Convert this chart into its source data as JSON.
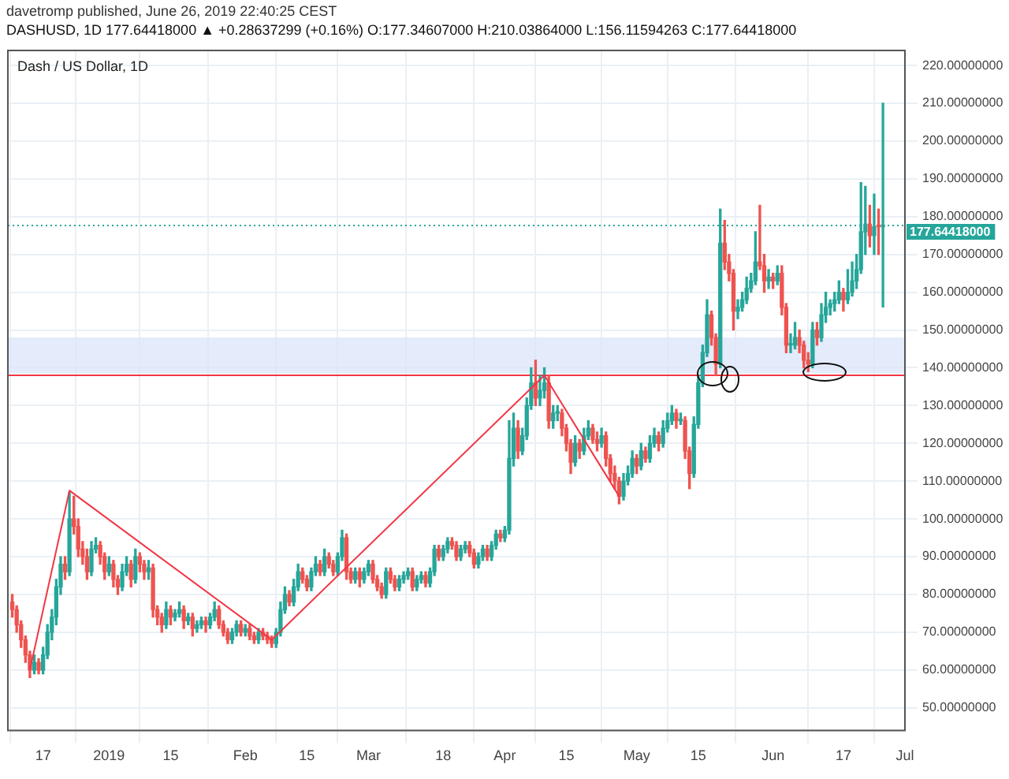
{
  "chart_data": {
    "type": "candlestick",
    "title": "Dash / US Dollar, 1D",
    "subtitle": "davetromp published, June 26, 2019 22:40:25 CEST",
    "annotations": [
      "DASHUSD, 1D 177.64418000 ▲ +0.28637299 (+0.16%) O:177.34607000 H:210.03864000 L:156.11594263 C:177.64418000"
    ],
    "colors": [
      "#ef5350",
      "#ef5350",
      "#ef5350",
      "#ef5350",
      "#ef5350",
      "#26a69a",
      "#ef5350",
      "#26a69a",
      "#26a69a",
      "#26a69a",
      "#26a69a",
      "#26a69a",
      "#ef5350",
      "#26a69a",
      "#ef5350",
      "#ef5350",
      "#ef5350",
      "#ef5350",
      "#26a69a",
      "#26a69a",
      "#ef5350",
      "#ef5350",
      "#26a69a",
      "#ef5350",
      "#ef5350",
      "#26a69a",
      "#26a69a",
      "#ef5350",
      "#26a69a",
      "#ef5350",
      "#ef5350",
      "#26a69a",
      "#ef5350",
      "#ef5350",
      "#ef5350",
      "#26a69a",
      "#ef5350",
      "#26a69a",
      "#26a69a",
      "#ef5350",
      "#26a69a",
      "#ef5350",
      "#26a69a",
      "#26a69a",
      "#ef5350",
      "#26a69a",
      "#26a69a",
      "#ef5350",
      "#ef5350",
      "#ef5350",
      "#26a69a",
      "#26a69a",
      "#ef5350",
      "#26a69a",
      "#ef5350",
      "#ef5350",
      "#26a69a",
      "#ef5350",
      "#ef5350",
      "#ef5350",
      "#26a69a",
      "#26a69a",
      "#26a69a",
      "#ef5350",
      "#26a69a",
      "#26a69a",
      "#ef5350",
      "#ef5350",
      "#26a69a",
      "#26a69a",
      "#ef5350",
      "#26a69a",
      "#ef5350",
      "#ef5350",
      "#26a69a",
      "#26a69a",
      "#ef5350",
      "#ef5350",
      "#26a69a",
      "#ef5350",
      "#26a69a",
      "#26a69a",
      "#ef5350",
      "#ef5350",
      "#ef5350",
      "#26a69a",
      "#ef5350",
      "#ef5350",
      "#26a69a",
      "#26a69a",
      "#26a69a",
      "#ef5350",
      "#26a69a",
      "#26a69a",
      "#ef5350",
      "#26a69a",
      "#26a69a",
      "#ef5350",
      "#26a69a",
      "#26a69a",
      "#ef5350",
      "#ef5350",
      "#26a69a",
      "#26a69a",
      "#ef5350",
      "#ef5350",
      "#26a69a",
      "#26a69a",
      "#ef5350",
      "#26a69a",
      "#26a69a",
      "#ef5350",
      "#26a69a",
      "#26a69a",
      "#26a69a",
      "#ef5350",
      "#26a69a",
      "#26a69a",
      "#26a69a",
      "#ef5350",
      "#26a69a",
      "#26a69a",
      "#ef5350",
      "#26a69a",
      "#26a69a",
      "#ef5350",
      "#ef5350",
      "#ef5350",
      "#26a69a",
      "#ef5350",
      "#26a69a",
      "#26a69a",
      "#ef5350",
      "#ef5350",
      "#26a69a",
      "#ef5350",
      "#ef5350",
      "#ef5350",
      "#ef5350",
      "#26a69a",
      "#26a69a",
      "#26a69a",
      "#ef5350",
      "#26a69a",
      "#ef5350",
      "#26a69a",
      "#26a69a",
      "#ef5350",
      "#26a69a",
      "#26a69a",
      "#26a69a",
      "#ef5350",
      "#26a69a",
      "#ef5350",
      "#ef5350",
      "#26a69a",
      "#26a69a",
      "#26a69a",
      "#26a69a",
      "#ef5350",
      "#ef5350",
      "#26a69a",
      "#ef5350",
      "#ef5350",
      "#ef5350",
      "#26a69a",
      "#26a69a",
      "#26a69a",
      "#26a69a",
      "#26a69a",
      "#ef5350",
      "#ef5350",
      "#26a69a",
      "#ef5350",
      "#26a69a",
      "#ef5350",
      "#ef5350",
      "#26a69a",
      "#26a69a",
      "#ef5350",
      "#ef5350",
      "#ef5350",
      "#26a69a",
      "#ef5350",
      "#26a69a",
      "#26a69a",
      "#26a69a",
      "#26a69a",
      "#26a69a",
      "#ef5350",
      "#26a69a",
      "#26a69a",
      "#26a69a",
      "#26a69a",
      "#26a69a",
      "#ef5350",
      "#26a69a",
      "#ef5350",
      "#26a69a"
    ],
    "x": [
      "2018-12-10",
      "2018-12-11",
      "2018-12-12",
      "2018-12-13",
      "2018-12-14",
      "2018-12-15",
      "2018-12-16",
      "2018-12-17",
      "2018-12-18",
      "2018-12-19",
      "2018-12-20",
      "2018-12-21",
      "2018-12-22",
      "2018-12-23",
      "2018-12-24",
      "2018-12-25",
      "2018-12-26",
      "2018-12-27",
      "2018-12-28",
      "2018-12-29",
      "2018-12-30",
      "2018-12-31",
      "2019-01-01",
      "2019-01-02",
      "2019-01-03",
      "2019-01-04",
      "2019-01-05",
      "2019-01-06",
      "2019-01-07",
      "2019-01-08",
      "2019-01-09",
      "2019-01-10",
      "2019-01-11",
      "2019-01-12",
      "2019-01-13",
      "2019-01-14",
      "2019-01-15",
      "2019-01-16",
      "2019-01-17",
      "2019-01-18",
      "2019-01-19",
      "2019-01-20",
      "2019-01-21",
      "2019-01-22",
      "2019-01-23",
      "2019-01-24",
      "2019-01-25",
      "2019-01-26",
      "2019-01-27",
      "2019-01-28",
      "2019-01-29",
      "2019-01-30",
      "2019-01-31",
      "2019-02-01",
      "2019-02-02",
      "2019-02-03",
      "2019-02-04",
      "2019-02-05",
      "2019-02-06",
      "2019-02-07",
      "2019-02-08",
      "2019-02-09",
      "2019-02-10",
      "2019-02-11",
      "2019-02-12",
      "2019-02-13",
      "2019-02-14",
      "2019-02-15",
      "2019-02-16",
      "2019-02-17",
      "2019-02-18",
      "2019-02-19",
      "2019-02-20",
      "2019-02-21",
      "2019-02-22",
      "2019-02-23",
      "2019-02-24",
      "2019-02-25",
      "2019-02-26",
      "2019-02-27",
      "2019-02-28",
      "2019-03-01",
      "2019-03-02",
      "2019-03-03",
      "2019-03-04",
      "2019-03-05",
      "2019-03-06",
      "2019-03-07",
      "2019-03-08",
      "2019-03-09",
      "2019-03-10",
      "2019-03-11",
      "2019-03-12",
      "2019-03-13",
      "2019-03-14",
      "2019-03-15",
      "2019-03-16",
      "2019-03-17",
      "2019-03-18",
      "2019-03-19",
      "2019-03-20",
      "2019-03-21",
      "2019-03-22",
      "2019-03-23",
      "2019-03-24",
      "2019-03-25",
      "2019-03-26",
      "2019-03-27",
      "2019-03-28",
      "2019-03-29",
      "2019-03-30",
      "2019-03-31",
      "2019-04-01",
      "2019-04-02",
      "2019-04-03",
      "2019-04-04",
      "2019-04-05",
      "2019-04-06",
      "2019-04-07",
      "2019-04-08",
      "2019-04-09",
      "2019-04-10",
      "2019-04-11",
      "2019-04-12",
      "2019-04-13",
      "2019-04-14",
      "2019-04-15",
      "2019-04-16",
      "2019-04-17",
      "2019-04-18",
      "2019-04-19",
      "2019-04-20",
      "2019-04-21",
      "2019-04-22",
      "2019-04-23",
      "2019-04-24",
      "2019-04-25",
      "2019-04-26",
      "2019-04-27",
      "2019-04-28",
      "2019-04-29",
      "2019-04-30",
      "2019-05-01",
      "2019-05-02",
      "2019-05-03",
      "2019-05-04",
      "2019-05-05",
      "2019-05-06",
      "2019-05-07",
      "2019-05-08",
      "2019-05-09",
      "2019-05-10",
      "2019-05-11",
      "2019-05-12",
      "2019-05-13",
      "2019-05-14",
      "2019-05-15",
      "2019-05-16",
      "2019-05-17",
      "2019-05-18",
      "2019-05-19",
      "2019-05-20",
      "2019-05-21",
      "2019-05-22",
      "2019-05-23",
      "2019-05-24",
      "2019-05-25",
      "2019-05-26",
      "2019-05-27",
      "2019-05-28",
      "2019-05-29",
      "2019-05-30",
      "2019-05-31",
      "2019-06-01",
      "2019-06-02",
      "2019-06-03",
      "2019-06-04",
      "2019-06-05",
      "2019-06-06",
      "2019-06-07",
      "2019-06-08",
      "2019-06-09",
      "2019-06-10",
      "2019-06-11",
      "2019-06-12",
      "2019-06-13",
      "2019-06-14",
      "2019-06-15",
      "2019-06-16",
      "2019-06-17",
      "2019-06-18",
      "2019-06-19",
      "2019-06-20",
      "2019-06-21",
      "2019-06-22",
      "2019-06-23",
      "2019-06-24",
      "2019-06-25",
      "2019-06-26"
    ],
    "ohlc": [
      [
        78,
        80,
        74,
        76
      ],
      [
        76,
        77,
        70,
        72
      ],
      [
        72,
        73,
        66,
        68
      ],
      [
        68,
        69,
        62,
        64
      ],
      [
        64,
        65,
        58,
        60
      ],
      [
        60,
        64,
        59,
        62
      ],
      [
        62,
        63,
        59,
        60
      ],
      [
        60,
        66,
        59,
        64
      ],
      [
        64,
        72,
        63,
        70
      ],
      [
        70,
        76,
        68,
        74
      ],
      [
        74,
        84,
        72,
        82
      ],
      [
        82,
        90,
        80,
        88
      ],
      [
        88,
        90,
        84,
        86
      ],
      [
        86,
        107,
        85,
        100
      ],
      [
        100,
        106,
        96,
        98
      ],
      [
        98,
        100,
        90,
        92
      ],
      [
        92,
        94,
        88,
        90
      ],
      [
        90,
        92,
        84,
        86
      ],
      [
        86,
        94,
        85,
        92
      ],
      [
        92,
        95,
        91,
        93
      ],
      [
        93,
        94,
        88,
        90
      ],
      [
        90,
        91,
        84,
        86
      ],
      [
        86,
        90,
        85,
        88
      ],
      [
        88,
        89,
        82,
        84
      ],
      [
        84,
        85,
        80,
        82
      ],
      [
        82,
        88,
        81,
        86
      ],
      [
        86,
        90,
        85,
        88
      ],
      [
        88,
        89,
        82,
        84
      ],
      [
        84,
        92,
        83,
        90
      ],
      [
        90,
        91,
        86,
        88
      ],
      [
        88,
        89,
        84,
        86
      ],
      [
        86,
        89,
        84,
        87
      ],
      [
        87,
        88,
        74,
        76
      ],
      [
        76,
        77,
        72,
        74
      ],
      [
        74,
        75,
        70,
        72
      ],
      [
        72,
        78,
        71,
        76
      ],
      [
        76,
        77,
        72,
        74
      ],
      [
        74,
        76,
        73,
        75
      ],
      [
        75,
        78,
        74,
        76
      ],
      [
        76,
        77,
        71,
        73
      ],
      [
        73,
        75,
        72,
        74
      ],
      [
        74,
        75,
        69,
        71
      ],
      [
        71,
        73,
        70,
        72
      ],
      [
        72,
        74,
        71,
        73
      ],
      [
        73,
        74,
        70,
        72
      ],
      [
        72,
        75,
        71,
        74
      ],
      [
        74,
        78,
        73,
        76
      ],
      [
        76,
        77,
        71,
        72
      ],
      [
        72,
        73,
        69,
        70
      ],
      [
        70,
        71,
        67,
        68
      ],
      [
        68,
        71,
        67,
        70
      ],
      [
        70,
        73,
        69,
        72
      ],
      [
        72,
        73,
        69,
        70
      ],
      [
        70,
        72,
        69,
        71
      ],
      [
        71,
        72,
        68,
        69
      ],
      [
        69,
        70,
        67,
        68
      ],
      [
        68,
        71,
        67,
        70
      ],
      [
        70,
        71,
        68,
        69
      ],
      [
        69,
        70,
        67,
        68
      ],
      [
        68,
        69,
        66,
        67
      ],
      [
        67,
        71,
        66,
        70
      ],
      [
        70,
        78,
        69,
        76
      ],
      [
        76,
        82,
        75,
        80
      ],
      [
        80,
        81,
        77,
        78
      ],
      [
        78,
        84,
        77,
        82
      ],
      [
        82,
        88,
        81,
        86
      ],
      [
        86,
        87,
        83,
        84
      ],
      [
        84,
        85,
        81,
        82
      ],
      [
        82,
        87,
        81,
        86
      ],
      [
        86,
        90,
        85,
        88
      ],
      [
        88,
        89,
        85,
        86
      ],
      [
        86,
        92,
        85,
        90
      ],
      [
        90,
        91,
        87,
        88
      ],
      [
        88,
        89,
        85,
        86
      ],
      [
        86,
        91,
        85,
        90
      ],
      [
        90,
        97,
        89,
        95
      ],
      [
        95,
        96,
        84,
        86
      ],
      [
        86,
        87,
        83,
        84
      ],
      [
        84,
        87,
        83,
        86
      ],
      [
        86,
        87,
        82,
        84
      ],
      [
        84,
        87,
        83,
        86
      ],
      [
        86,
        89,
        85,
        88
      ],
      [
        88,
        89,
        83,
        84
      ],
      [
        84,
        85,
        81,
        82
      ],
      [
        82,
        83,
        79,
        80
      ],
      [
        80,
        87,
        79,
        86
      ],
      [
        86,
        87,
        83,
        84
      ],
      [
        84,
        85,
        81,
        82
      ],
      [
        82,
        85,
        81,
        84
      ],
      [
        84,
        86,
        83,
        85
      ],
      [
        85,
        87,
        84,
        86
      ],
      [
        86,
        87,
        81,
        82
      ],
      [
        82,
        85,
        81,
        84
      ],
      [
        84,
        86,
        83,
        85
      ],
      [
        85,
        86,
        82,
        83
      ],
      [
        83,
        87,
        82,
        86
      ],
      [
        86,
        93,
        85,
        92
      ],
      [
        92,
        93,
        89,
        90
      ],
      [
        90,
        93,
        89,
        92
      ],
      [
        92,
        95,
        91,
        94
      ],
      [
        94,
        95,
        92,
        93
      ],
      [
        93,
        94,
        89,
        90
      ],
      [
        90,
        93,
        89,
        92
      ],
      [
        92,
        94,
        91,
        93
      ],
      [
        93,
        94,
        90,
        91
      ],
      [
        91,
        92,
        87,
        88
      ],
      [
        88,
        91,
        87,
        90
      ],
      [
        90,
        93,
        89,
        92
      ],
      [
        92,
        93,
        89,
        90
      ],
      [
        90,
        94,
        89,
        93
      ],
      [
        93,
        97,
        92,
        96
      ],
      [
        96,
        97,
        94,
        95
      ],
      [
        95,
        98,
        94,
        97
      ],
      [
        97,
        126,
        96,
        116
      ],
      [
        116,
        128,
        114,
        124
      ],
      [
        124,
        126,
        116,
        118
      ],
      [
        118,
        124,
        117,
        122
      ],
      [
        122,
        132,
        121,
        130
      ],
      [
        130,
        140,
        129,
        136
      ],
      [
        136,
        142,
        130,
        132
      ],
      [
        132,
        138,
        130,
        134
      ],
      [
        134,
        140,
        132,
        136
      ],
      [
        136,
        138,
        124,
        126
      ],
      [
        126,
        130,
        124,
        128
      ],
      [
        128,
        130,
        126,
        128
      ],
      [
        128,
        129,
        122,
        124
      ],
      [
        124,
        125,
        118,
        120
      ],
      [
        120,
        121,
        112,
        115
      ],
      [
        115,
        122,
        114,
        120
      ],
      [
        120,
        121,
        116,
        118
      ],
      [
        118,
        124,
        117,
        122
      ],
      [
        122,
        126,
        121,
        124
      ],
      [
        124,
        125,
        120,
        121
      ],
      [
        121,
        123,
        118,
        120
      ],
      [
        120,
        124,
        119,
        122
      ],
      [
        122,
        123,
        114,
        116
      ],
      [
        116,
        117,
        110,
        112
      ],
      [
        112,
        114,
        108,
        110
      ],
      [
        110,
        111,
        104,
        106
      ],
      [
        106,
        112,
        105,
        110
      ],
      [
        110,
        114,
        109,
        112
      ],
      [
        112,
        118,
        111,
        116
      ],
      [
        116,
        117,
        112,
        114
      ],
      [
        114,
        120,
        113,
        118
      ],
      [
        118,
        119,
        115,
        116
      ],
      [
        116,
        122,
        115,
        120
      ],
      [
        120,
        124,
        119,
        122
      ],
      [
        122,
        123,
        118,
        120
      ],
      [
        120,
        126,
        119,
        124
      ],
      [
        124,
        128,
        123,
        126
      ],
      [
        126,
        130,
        125,
        128
      ],
      [
        128,
        129,
        124,
        126
      ],
      [
        126,
        128,
        125,
        126
      ],
      [
        126,
        127,
        116,
        118
      ],
      [
        118,
        119,
        108,
        112
      ],
      [
        112,
        127,
        111,
        125
      ],
      [
        125,
        138,
        124,
        136
      ],
      [
        136,
        146,
        135,
        144
      ],
      [
        144,
        158,
        143,
        154
      ],
      [
        154,
        155,
        146,
        148
      ],
      [
        148,
        149,
        138,
        141
      ],
      [
        141,
        182,
        140,
        173
      ],
      [
        173,
        179,
        166,
        168
      ],
      [
        168,
        170,
        163,
        165
      ],
      [
        165,
        166,
        150,
        155
      ],
      [
        155,
        158,
        153,
        156
      ],
      [
        156,
        160,
        155,
        158
      ],
      [
        158,
        164,
        157,
        161
      ],
      [
        161,
        165,
        160,
        163
      ],
      [
        163,
        176,
        162,
        168
      ],
      [
        168,
        183,
        166,
        167
      ],
      [
        167,
        170,
        160,
        163
      ],
      [
        163,
        166,
        161,
        164
      ],
      [
        164,
        165,
        161,
        163
      ],
      [
        163,
        167,
        162,
        165
      ],
      [
        165,
        167,
        154,
        156
      ],
      [
        156,
        157,
        144,
        146
      ],
      [
        146,
        149,
        144,
        146
      ],
      [
        146,
        152,
        145,
        148
      ],
      [
        148,
        150,
        144,
        146
      ],
      [
        146,
        147,
        140,
        142
      ],
      [
        142,
        144,
        139,
        141
      ],
      [
        141,
        152,
        140,
        150
      ],
      [
        150,
        152,
        146,
        148
      ],
      [
        148,
        157,
        147,
        154
      ],
      [
        154,
        160,
        152,
        156
      ],
      [
        156,
        158,
        154,
        157
      ],
      [
        157,
        160,
        155,
        158
      ],
      [
        158,
        163,
        157,
        160
      ],
      [
        160,
        161,
        155,
        158
      ],
      [
        158,
        166,
        157,
        160
      ],
      [
        160,
        168,
        159,
        163
      ],
      [
        163,
        170,
        161,
        166
      ],
      [
        166,
        189,
        165,
        176
      ],
      [
        176,
        188,
        170,
        178
      ],
      [
        178,
        183,
        172,
        175
      ],
      [
        175,
        186,
        170,
        177.35
      ],
      [
        177.35,
        182,
        170,
        177.34607
      ],
      [
        177.34607,
        210.03864,
        156.11594263,
        177.64418
      ]
    ],
    "series": [
      {
        "type": "line",
        "color": "#f23645",
        "x": [
          "2018-12-14",
          "2018-12-23",
          "2019-02-07",
          "2019-04-10",
          "2019-04-27"
        ],
        "values": [
          60,
          107.5,
          68,
          138,
          106
        ]
      }
    ],
    "marker": "none",
    "line_style": "solid",
    "bands": [
      {
        "axis": "y",
        "from": 138.5,
        "to": 148,
        "color": "#dde6f9"
      }
    ],
    "ref_lines": [
      {
        "axis": "y",
        "value": 138,
        "color": "#f23645",
        "line_style": "solid"
      },
      {
        "axis": "y",
        "value": 177.64418,
        "label": "177.64418000",
        "color": "#26a69a",
        "line_style": "dotted"
      }
    ],
    "xlim": [
      "2018-12-09",
      "2019-07-01"
    ],
    "xticks": [
      {
        "value": "2018-12-17",
        "label": "17"
      },
      {
        "value": "2019-01-01",
        "label": "2019"
      },
      {
        "value": "2019-01-15",
        "label": "15"
      },
      {
        "value": "2019-02-01",
        "label": "Feb"
      },
      {
        "value": "2019-02-15",
        "label": "15"
      },
      {
        "value": "2019-03-01",
        "label": "Mar"
      },
      {
        "value": "2019-03-18",
        "label": "18"
      },
      {
        "value": "2019-04-01",
        "label": "Apr"
      },
      {
        "value": "2019-04-15",
        "label": "15"
      },
      {
        "value": "2019-05-01",
        "label": "May"
      },
      {
        "value": "2019-05-15",
        "label": "15"
      },
      {
        "value": "2019-06-01",
        "label": "Jun"
      },
      {
        "value": "2019-06-17",
        "label": "17"
      },
      {
        "value": "2019-07-01",
        "label": "Jul"
      }
    ],
    "ylim": [
      44,
      224
    ],
    "yticks": [
      {
        "value": 50,
        "label": "50.00000000"
      },
      {
        "value": 60,
        "label": "60.00000000"
      },
      {
        "value": 70,
        "label": "70.00000000"
      },
      {
        "value": 80,
        "label": "80.00000000"
      },
      {
        "value": 90,
        "label": "90.00000000"
      },
      {
        "value": 100,
        "label": "100.00000000"
      },
      {
        "value": 110,
        "label": "110.00000000"
      },
      {
        "value": 120,
        "label": "120.00000000"
      },
      {
        "value": 130,
        "label": "130.00000000"
      },
      {
        "value": 140,
        "label": "140.00000000"
      },
      {
        "value": 150,
        "label": "150.00000000"
      },
      {
        "value": 160,
        "label": "160.00000000"
      },
      {
        "value": 170,
        "label": "170.00000000"
      },
      {
        "value": 180,
        "label": "180.00000000"
      },
      {
        "value": 190,
        "label": "190.00000000"
      },
      {
        "value": 200,
        "label": "200.00000000"
      },
      {
        "value": 210,
        "label": "210.00000000"
      },
      {
        "value": 220,
        "label": "220.00000000"
      }
    ],
    "grid": true,
    "legend": false
  }
}
